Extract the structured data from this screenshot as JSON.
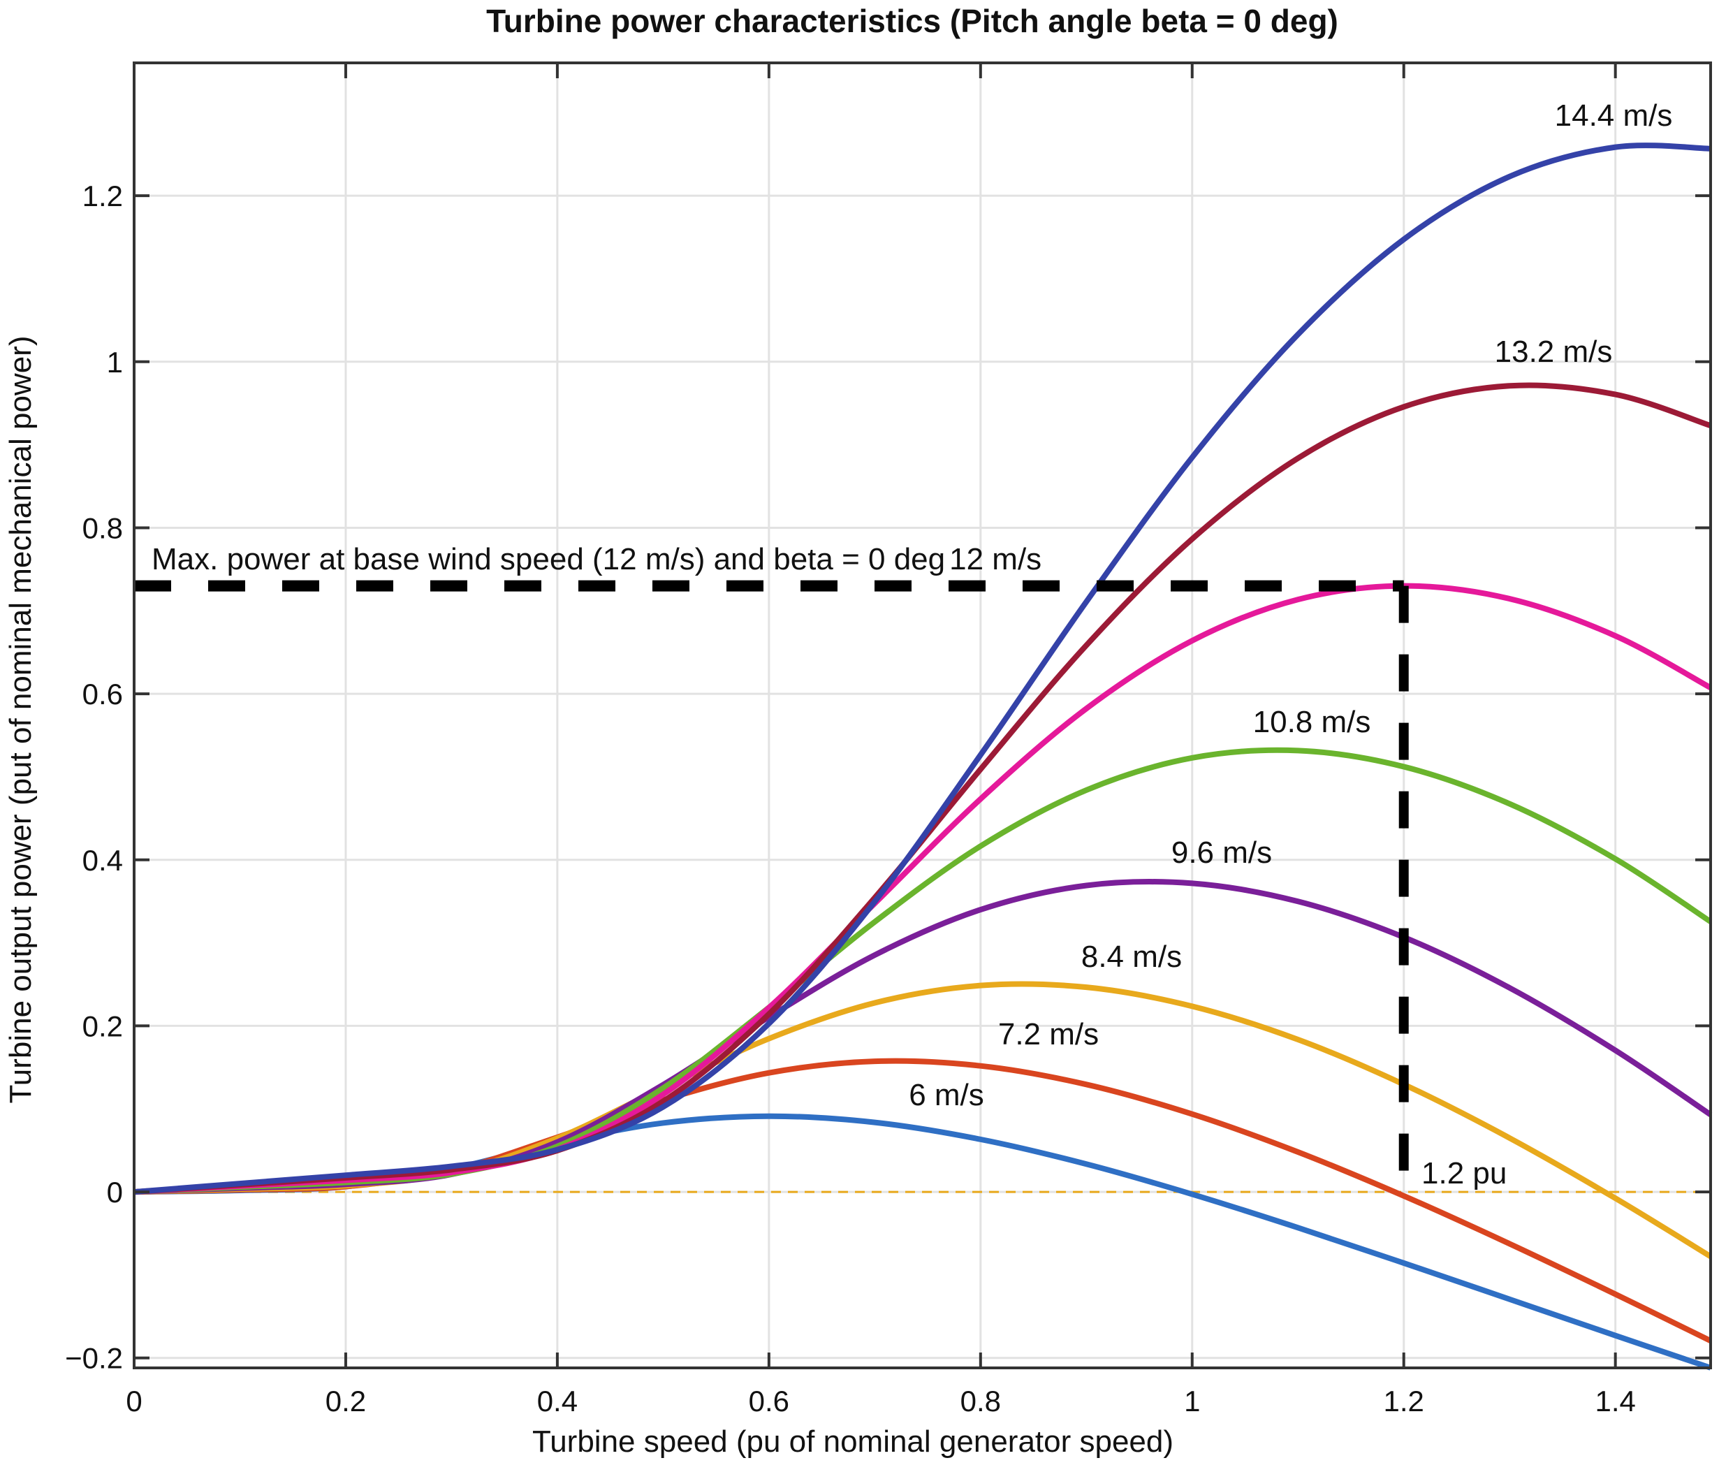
{
  "chart_data": {
    "type": "line",
    "title": "Turbine power characteristics (Pitch angle beta = 0 deg)",
    "xlabel": "Turbine speed (pu of nominal generator speed)",
    "ylabel": "Turbine output power (put of nominal mechanical power)",
    "xlim": [
      0,
      1.49
    ],
    "ylim": [
      -0.212,
      1.36
    ],
    "xticks": [
      0,
      0.2,
      0.4,
      0.6,
      0.8,
      1.0,
      1.2,
      1.4
    ],
    "xtick_labels": [
      "0",
      "0.2",
      "0.4",
      "0.6",
      "0.8",
      "1",
      "1.2",
      "1.4"
    ],
    "yticks": [
      -0.2,
      0,
      0.2,
      0.4,
      0.6,
      0.8,
      1.0,
      1.2
    ],
    "ytick_labels": [
      "−0.2",
      "0",
      "0.2",
      "0.4",
      "0.6",
      "0.8",
      "1",
      "1.2"
    ],
    "grid": true,
    "legend": "none (curves labelled inline)",
    "x": [
      0,
      0.1,
      0.2,
      0.3,
      0.4,
      0.5,
      0.6,
      0.7,
      0.8,
      0.9,
      1.0,
      1.1,
      1.2,
      1.3,
      1.4,
      1.49
    ],
    "series": [
      {
        "name": "6 m/s",
        "label": "6 m/s",
        "color": "#2f6fc4",
        "values": [
          0,
          0.0018,
          0.0064,
          0.0277,
          0.0592,
          0.083,
          0.0912,
          0.0837,
          0.0633,
          0.0335,
          -0.0028,
          -0.0431,
          -0.0857,
          -0.1293,
          -0.173,
          -0.2119
        ]
      },
      {
        "name": "7.2 m/s",
        "label": "7.2 m/s",
        "color": "#d9451f",
        "values": [
          0,
          0.0025,
          0.0064,
          0.0254,
          0.0658,
          0.1106,
          0.1434,
          0.1573,
          0.1518,
          0.1294,
          0.0937,
          0.048,
          -0.0048,
          -0.0625,
          -0.1232,
          -0.1794
        ]
      },
      {
        "name": "8.4 m/s",
        "label": "8.4 m/s",
        "color": "#e8a91c",
        "values": [
          0,
          0.0034,
          0.0074,
          0.0226,
          0.0648,
          0.1255,
          0.1846,
          0.2277,
          0.2486,
          0.2465,
          0.2236,
          0.1835,
          0.1295,
          0.0649,
          -0.0077,
          -0.0778
        ]
      },
      {
        "name": "9.6 m/s",
        "label": "9.6 m/s",
        "color": "#7a1f99",
        "values": [
          0,
          0.0045,
          0.0091,
          0.0211,
          0.0601,
          0.1291,
          0.2106,
          0.2853,
          0.34,
          0.3691,
          0.3717,
          0.3499,
          0.3068,
          0.2458,
          0.1705,
          0.093
        ]
      },
      {
        "name": "10.8 m/s",
        "label": "10.8 m/s",
        "color": "#6ab42d",
        "values": [
          0,
          0.0057,
          0.0114,
          0.0215,
          0.0549,
          0.1251,
          0.2221,
          0.3253,
          0.4165,
          0.484,
          0.5228,
          0.5316,
          0.5122,
          0.4675,
          0.4011,
          0.3255
        ]
      },
      {
        "name": "12 m/s",
        "label": "12 m/s",
        "color": "#e5199a",
        "values": [
          0,
          0.007,
          0.014,
          0.0234,
          0.0512,
          0.1174,
          0.2219,
          0.3475,
          0.4733,
          0.5822,
          0.664,
          0.7136,
          0.73,
          0.7145,
          0.6698,
          0.6073
        ]
      },
      {
        "name": "13.2 m/s",
        "label": "13.2 m/s",
        "color": "#9c1a36",
        "values": [
          0,
          0.0085,
          0.0169,
          0.0267,
          0.0498,
          0.1091,
          0.2142,
          0.3544,
          0.5091,
          0.6584,
          0.7865,
          0.8838,
          0.9457,
          0.971,
          0.9606,
          0.923
        ]
      },
      {
        "name": "14.4 m/s",
        "label": "14.4 m/s",
        "color": "#3442a8",
        "values": [
          0,
          0.0101,
          0.0201,
          0.0308,
          0.0509,
          0.1024,
          0.2028,
          0.3497,
          0.5264,
          0.7109,
          0.8848,
          1.0329,
          1.1474,
          1.2231,
          1.2585,
          1.2567
        ]
      }
    ],
    "reference_lines": {
      "zero_line": {
        "y": 0,
        "color": "#e8a91c",
        "style": "dashed"
      },
      "max_power_line": {
        "y": 0.73,
        "x_start": 0,
        "x_end": 1.2,
        "color": "#000000",
        "style": "dashed"
      },
      "base_speed_line": {
        "x": 1.2,
        "y_start": 0,
        "y_end": 0.73,
        "color": "#000000",
        "style": "dashed"
      }
    },
    "annotations": {
      "max_power": "Max. power at base wind speed (12 m/s) and beta = 0 deg",
      "base_speed": "1.2 pu"
    }
  }
}
